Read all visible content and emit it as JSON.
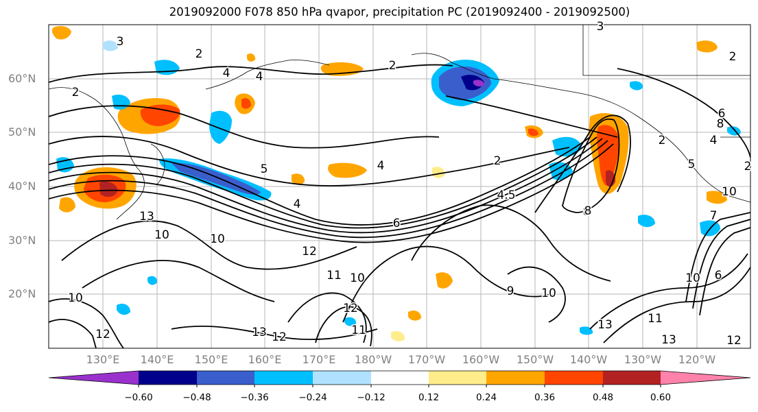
{
  "title": "2019092000 F078 850 hPa qvapor, precipitation PC (2019092400 - 2019092500)",
  "map": {
    "lat_labels": [
      "60°N",
      "50°N",
      "40°N",
      "30°N",
      "20°N"
    ],
    "lon_labels": [
      "130°E",
      "140°E",
      "150°E",
      "160°E",
      "170°E",
      "180°W",
      "170°W",
      "160°W",
      "150°W",
      "140°W",
      "130°W",
      "120°W"
    ],
    "contour_labels": [
      "3",
      "2",
      "2",
      "4",
      "2",
      "4",
      "3",
      "2",
      "8",
      "6",
      "5",
      "4",
      "4",
      "2",
      "4.5",
      "6",
      "8",
      "13",
      "10",
      "10",
      "12",
      "11",
      "10",
      "12",
      "13",
      "12",
      "10",
      "9",
      "10",
      "11",
      "13",
      "13",
      "12",
      "11",
      "10",
      "12",
      "7",
      "10",
      "5",
      "8",
      "6",
      "2",
      "4",
      "2"
    ]
  },
  "colorbar": {
    "colors": [
      "#9932CC",
      "#00008B",
      "#3A5FCD",
      "#00BFFF",
      "#B0E2FF",
      "#FFFFFF",
      "#FFEC8B",
      "#FFA500",
      "#FF4500",
      "#B22222",
      "#FF82AB"
    ],
    "tick_labels": [
      "−0.60",
      "−0.48",
      "−0.36",
      "−0.24",
      "−0.12",
      "0.12",
      "0.24",
      "0.36",
      "0.48",
      "0.60"
    ]
  }
}
